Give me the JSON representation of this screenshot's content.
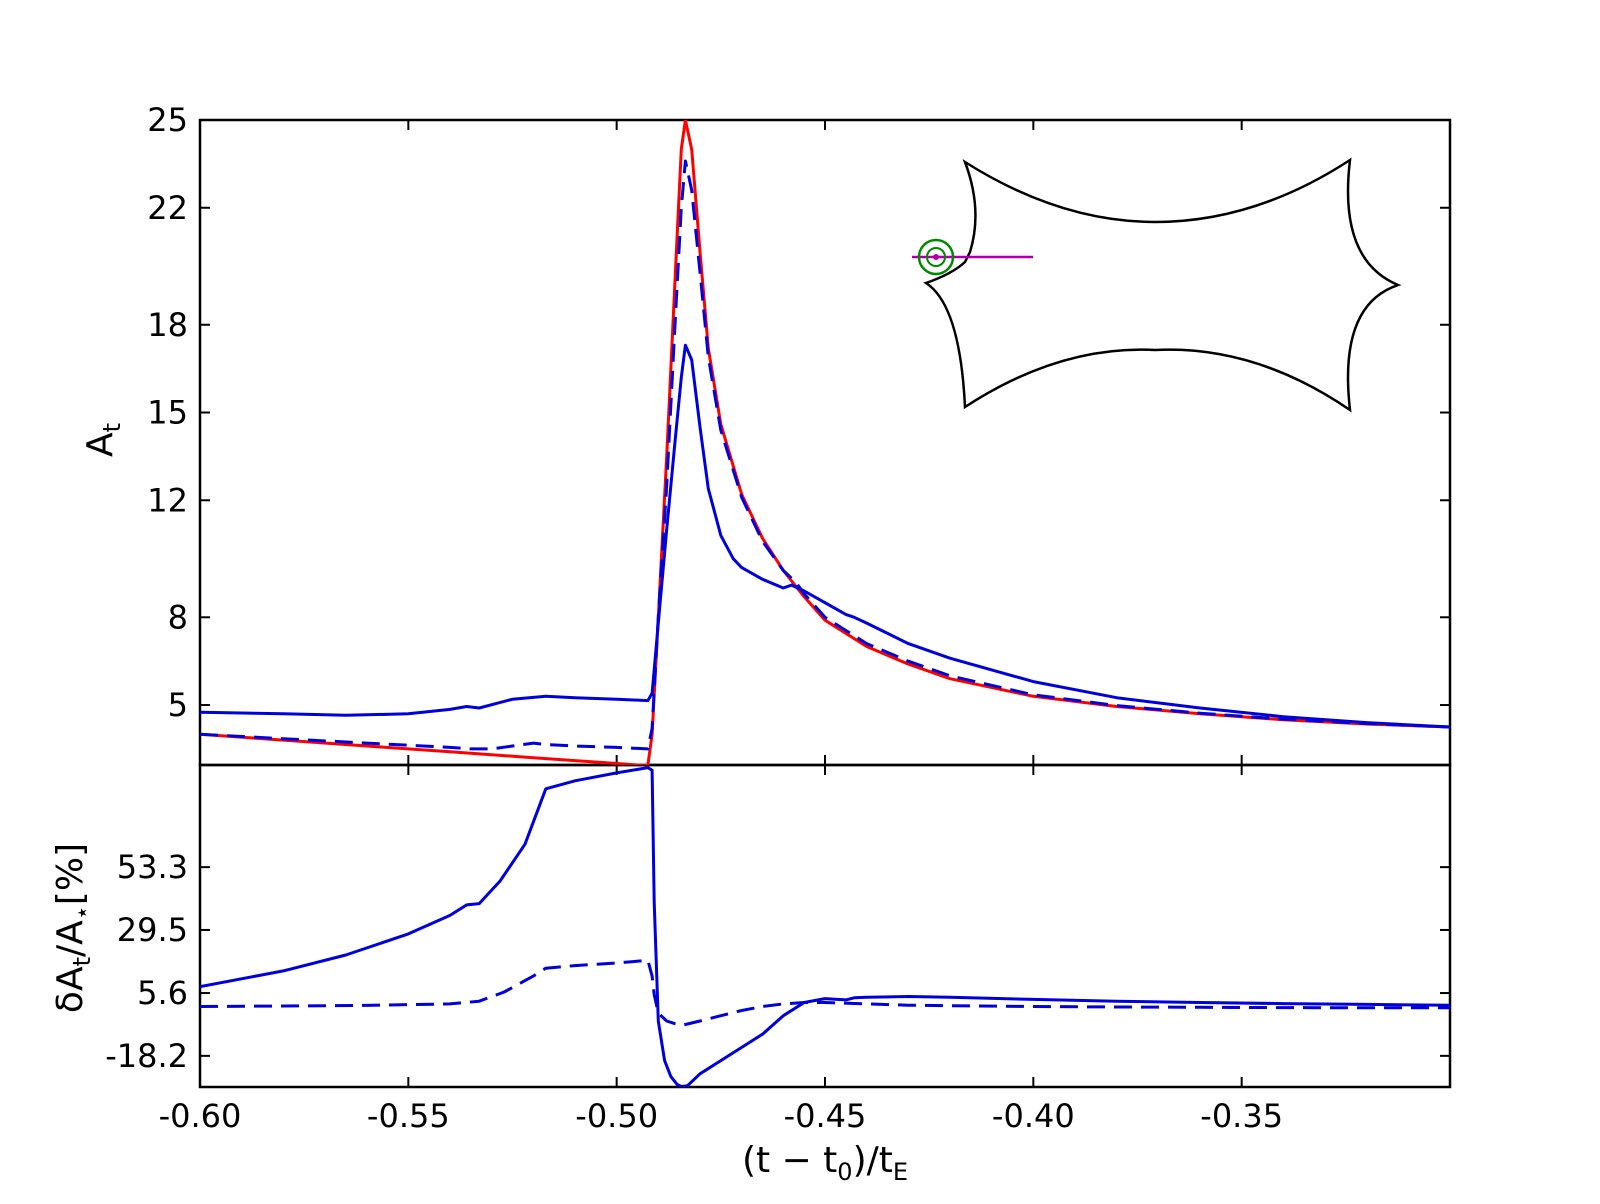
{
  "chart_data": {
    "type": "line",
    "x_label": "(t − t",
    "x_label_sub0": "0",
    "x_label_mid": ")/t",
    "x_label_sub1": "E",
    "xlim": [
      -0.6,
      -0.3
    ],
    "x_ticks": [
      -0.6,
      -0.55,
      -0.5,
      -0.45,
      -0.4,
      -0.35
    ],
    "x_tick_labels": [
      "-0.60",
      "-0.55",
      "-0.50",
      "-0.45",
      "-0.40",
      "-0.35"
    ],
    "panels": [
      {
        "id": "top",
        "ylabel": "A",
        "ylabel_sub": "t",
        "ylim": [
          2.95,
          25.0
        ],
        "y_ticks": [
          5,
          8,
          12,
          15,
          18,
          22,
          25
        ],
        "y_tick_labels": [
          "5",
          "8",
          "12",
          "15",
          "18",
          "22",
          "25"
        ],
        "series": [
          {
            "color": "#ff0000",
            "dash": "solid",
            "x": [
              -0.6,
              -0.58,
              -0.56,
              -0.54,
              -0.52,
              -0.51,
              -0.5,
              -0.495,
              -0.4925,
              -0.4915,
              -0.49,
              -0.488,
              -0.486,
              -0.4845,
              -0.4835,
              -0.482,
              -0.48,
              -0.478,
              -0.475,
              -0.47,
              -0.465,
              -0.46,
              -0.455,
              -0.45,
              -0.44,
              -0.43,
              -0.42,
              -0.4,
              -0.38,
              -0.36,
              -0.34,
              -0.32,
              -0.3
            ],
            "y": [
              4.0,
              3.8,
              3.6,
              3.4,
              3.2,
              3.1,
              3.0,
              2.95,
              2.95,
              4.0,
              8.0,
              13.5,
              19.5,
              24.0,
              25.0,
              24.0,
              20.5,
              17.2,
              14.6,
              12.2,
              10.7,
              9.6,
              8.7,
              7.9,
              7.0,
              6.4,
              5.9,
              5.3,
              4.95,
              4.7,
              4.5,
              4.35,
              4.25
            ]
          },
          {
            "color": "#0000dd",
            "dash": "dashed",
            "x": [
              -0.6,
              -0.58,
              -0.56,
              -0.54,
              -0.535,
              -0.53,
              -0.52,
              -0.517,
              -0.51,
              -0.5,
              -0.4925,
              -0.4915,
              -0.49,
              -0.488,
              -0.486,
              -0.4845,
              -0.4835,
              -0.482,
              -0.48,
              -0.478,
              -0.475,
              -0.47,
              -0.465,
              -0.46,
              -0.457,
              -0.455,
              -0.45,
              -0.44,
              -0.43,
              -0.42,
              -0.4,
              -0.38,
              -0.36,
              -0.34,
              -0.32,
              -0.3
            ],
            "y": [
              4.0,
              3.85,
              3.7,
              3.55,
              3.5,
              3.5,
              3.7,
              3.65,
              3.6,
              3.55,
              3.5,
              4.2,
              8.0,
              12.5,
              18.0,
              22.0,
              23.6,
              22.6,
              19.8,
              16.9,
              14.4,
              12.1,
              10.6,
              9.6,
              9.2,
              8.8,
              8.0,
              7.1,
              6.5,
              6.0,
              5.35,
              4.98,
              4.72,
              4.52,
              4.37,
              4.25
            ]
          },
          {
            "color": "#0000dd",
            "dash": "solid",
            "x": [
              -0.6,
              -0.58,
              -0.565,
              -0.55,
              -0.54,
              -0.536,
              -0.533,
              -0.525,
              -0.517,
              -0.51,
              -0.5,
              -0.4925,
              -0.4915,
              -0.49,
              -0.488,
              -0.486,
              -0.4845,
              -0.4835,
              -0.482,
              -0.48,
              -0.478,
              -0.475,
              -0.472,
              -0.47,
              -0.465,
              -0.46,
              -0.458,
              -0.455,
              -0.45,
              -0.445,
              -0.443,
              -0.44,
              -0.43,
              -0.42,
              -0.4,
              -0.38,
              -0.36,
              -0.34,
              -0.32,
              -0.3
            ],
            "y": [
              4.75,
              4.7,
              4.65,
              4.7,
              4.85,
              4.95,
              4.9,
              5.2,
              5.3,
              5.25,
              5.2,
              5.15,
              5.4,
              7.8,
              11.0,
              14.0,
              16.2,
              17.3,
              16.8,
              14.5,
              12.4,
              10.8,
              10.0,
              9.7,
              9.3,
              9.0,
              9.1,
              8.9,
              8.5,
              8.1,
              8.0,
              7.8,
              7.1,
              6.6,
              5.8,
              5.25,
              4.9,
              4.6,
              4.4,
              4.25
            ]
          }
        ]
      },
      {
        "id": "bottom",
        "ylabel": "δA",
        "ylabel_sub": "t",
        "ylabel_tail": "/A",
        "ylabel_sub2": "⋆",
        "ylabel_unit": "[%]",
        "ylim": [
          -30.0,
          92.0
        ],
        "y_ticks": [
          -18.2,
          5.6,
          29.5,
          53.3
        ],
        "y_tick_labels": [
          "-18.2",
          "5.6",
          "29.5",
          "53.3"
        ],
        "series": [
          {
            "color": "#0000dd",
            "dash": "solid",
            "x": [
              -0.6,
              -0.58,
              -0.565,
              -0.55,
              -0.54,
              -0.536,
              -0.533,
              -0.528,
              -0.522,
              -0.517,
              -0.51,
              -0.5,
              -0.4925,
              -0.4915,
              -0.491,
              -0.49,
              -0.4885,
              -0.487,
              -0.4855,
              -0.4845,
              -0.483,
              -0.48,
              -0.475,
              -0.47,
              -0.465,
              -0.46,
              -0.455,
              -0.45,
              -0.445,
              -0.443,
              -0.44,
              -0.43,
              -0.42,
              -0.4,
              -0.38,
              -0.36,
              -0.34,
              -0.32,
              -0.3
            ],
            "y": [
              8.0,
              14.0,
              20.0,
              28.0,
              35.0,
              39.0,
              39.5,
              48.0,
              62.0,
              83.0,
              86.0,
              89.0,
              91.0,
              90.0,
              40.0,
              -5.0,
              -20.0,
              -26.0,
              -29.0,
              -29.8,
              -29.5,
              -25.0,
              -20.0,
              -15.0,
              -10.0,
              -3.0,
              2.0,
              3.5,
              3.0,
              3.8,
              4.0,
              4.3,
              4.0,
              3.2,
              2.5,
              2.0,
              1.6,
              1.3,
              1.0
            ]
          },
          {
            "color": "#0000dd",
            "dash": "dashed",
            "x": [
              -0.6,
              -0.58,
              -0.56,
              -0.54,
              -0.533,
              -0.527,
              -0.52,
              -0.517,
              -0.51,
              -0.5,
              -0.4925,
              -0.4915,
              -0.491,
              -0.49,
              -0.488,
              -0.486,
              -0.484,
              -0.48,
              -0.475,
              -0.47,
              -0.465,
              -0.46,
              -0.455,
              -0.45,
              -0.44,
              -0.43,
              -0.42,
              -0.4,
              -0.38,
              -0.36,
              -0.34,
              -0.32,
              -0.3
            ],
            "y": [
              0.5,
              0.7,
              0.9,
              1.5,
              2.5,
              6.0,
              12.0,
              15.0,
              16.0,
              17.0,
              18.0,
              12.0,
              5.0,
              -2.0,
              -5.0,
              -6.0,
              -6.5,
              -5.0,
              -3.0,
              -1.0,
              0.5,
              1.5,
              2.0,
              2.0,
              1.5,
              1.0,
              0.8,
              0.5,
              0.3,
              0.2,
              0.1,
              0.0,
              0.0
            ]
          }
        ]
      }
    ],
    "inset": {
      "description_free": true,
      "caustic_color": "#000000",
      "trajectory_color": "#aa00aa",
      "source_color": "#008800"
    }
  }
}
